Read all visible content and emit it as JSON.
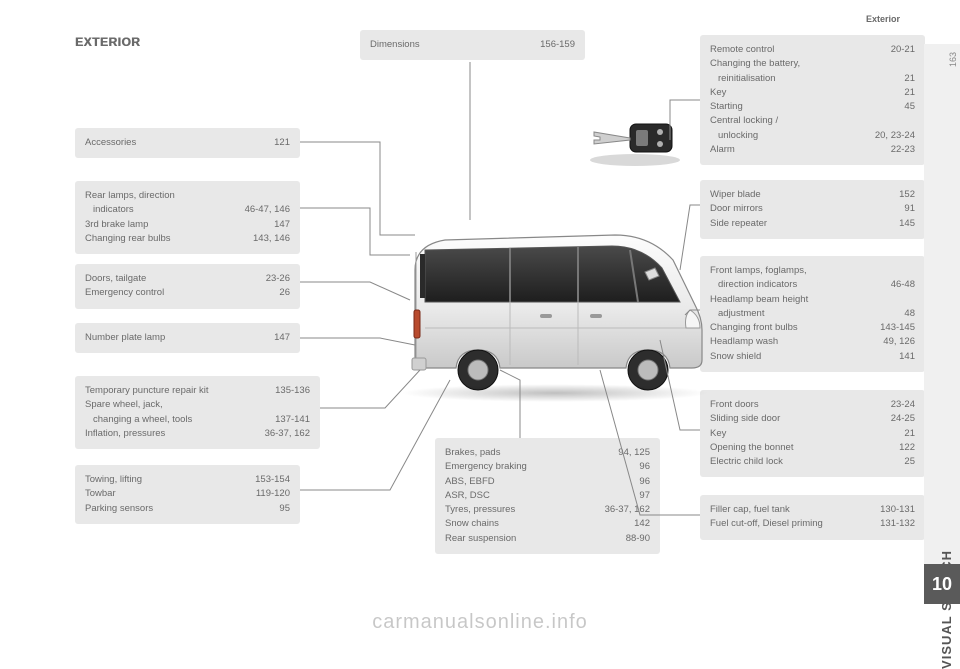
{
  "header": {
    "section": "Exterior",
    "title": "EXTERIOR"
  },
  "sidebar": {
    "label": "VISUAL SEARCH",
    "chapter": "10",
    "pagenum": "163"
  },
  "watermark": "carmanualsonline.info",
  "boxes": {
    "dimensions": {
      "rows": [
        {
          "l": "Dimensions",
          "v": "156-159"
        }
      ]
    },
    "accessories": {
      "rows": [
        {
          "l": "Accessories",
          "v": "121"
        }
      ]
    },
    "rear_lamps": {
      "rows": [
        {
          "l": "Rear lamps, direction",
          "v": ""
        },
        {
          "l": "indicators",
          "v": "46-47, 146",
          "indent": true
        },
        {
          "l": "3rd brake lamp",
          "v": "147"
        },
        {
          "l": "Changing rear bulbs",
          "v": "143, 146"
        }
      ]
    },
    "doors": {
      "rows": [
        {
          "l": "Doors, tailgate",
          "v": "23-26"
        },
        {
          "l": "Emergency control",
          "v": "26"
        }
      ]
    },
    "plate": {
      "rows": [
        {
          "l": "Number plate lamp",
          "v": "147"
        }
      ]
    },
    "puncture": {
      "rows": [
        {
          "l": "Temporary puncture repair kit",
          "v": "135-136"
        },
        {
          "l": "Spare wheel, jack,",
          "v": ""
        },
        {
          "l": "changing a wheel, tools",
          "v": "137-141",
          "indent": true
        },
        {
          "l": "Inflation, pressures",
          "v": "36-37, 162"
        }
      ]
    },
    "towing": {
      "rows": [
        {
          "l": "Towing, lifting",
          "v": "153-154"
        },
        {
          "l": "Towbar",
          "v": "119-120"
        },
        {
          "l": "Parking sensors",
          "v": "95"
        }
      ]
    },
    "brakes": {
      "rows": [
        {
          "l": "Brakes, pads",
          "v": "94, 125"
        },
        {
          "l": "Emergency braking",
          "v": "96"
        },
        {
          "l": "ABS, EBFD",
          "v": "96"
        },
        {
          "l": "ASR, DSC",
          "v": "97"
        },
        {
          "l": "Tyres, pressures",
          "v": "36-37, 162"
        },
        {
          "l": "Snow chains",
          "v": "142"
        },
        {
          "l": "Rear suspension",
          "v": "88-90"
        }
      ]
    },
    "remote": {
      "rows": [
        {
          "l": "Remote control",
          "v": "20-21"
        },
        {
          "l": "Changing the battery,",
          "v": ""
        },
        {
          "l": "reinitialisation",
          "v": "21",
          "indent": true
        },
        {
          "l": "Key",
          "v": "21"
        },
        {
          "l": "Starting",
          "v": "45"
        },
        {
          "l": "Central locking /",
          "v": ""
        },
        {
          "l": "unlocking",
          "v": "20, 23-24",
          "indent": true
        },
        {
          "l": "Alarm",
          "v": "22-23"
        }
      ]
    },
    "wiper": {
      "rows": [
        {
          "l": "Wiper blade",
          "v": "152"
        },
        {
          "l": "Door mirrors",
          "v": "91"
        },
        {
          "l": "Side repeater",
          "v": "145"
        }
      ]
    },
    "front_lamps": {
      "rows": [
        {
          "l": "Front lamps, foglamps,",
          "v": ""
        },
        {
          "l": "direction indicators",
          "v": "46-48",
          "indent": true
        },
        {
          "l": "Headlamp beam height",
          "v": ""
        },
        {
          "l": "adjustment",
          "v": "48",
          "indent": true
        },
        {
          "l": "Changing front bulbs",
          "v": "143-145"
        },
        {
          "l": "Headlamp wash",
          "v": "49, 126"
        },
        {
          "l": "Snow shield",
          "v": "141"
        }
      ]
    },
    "front_doors": {
      "rows": [
        {
          "l": "Front doors",
          "v": "23-24"
        },
        {
          "l": "Sliding side door",
          "v": "24-25"
        },
        {
          "l": "Key",
          "v": "21"
        },
        {
          "l": "Opening the bonnet",
          "v": "122"
        },
        {
          "l": "Electric child lock",
          "v": "25"
        }
      ]
    },
    "filler": {
      "rows": [
        {
          "l": "Filler cap, fuel tank",
          "v": "130-131"
        },
        {
          "l": "Fuel cut-off, Diesel priming",
          "v": "131-132"
        }
      ]
    }
  }
}
